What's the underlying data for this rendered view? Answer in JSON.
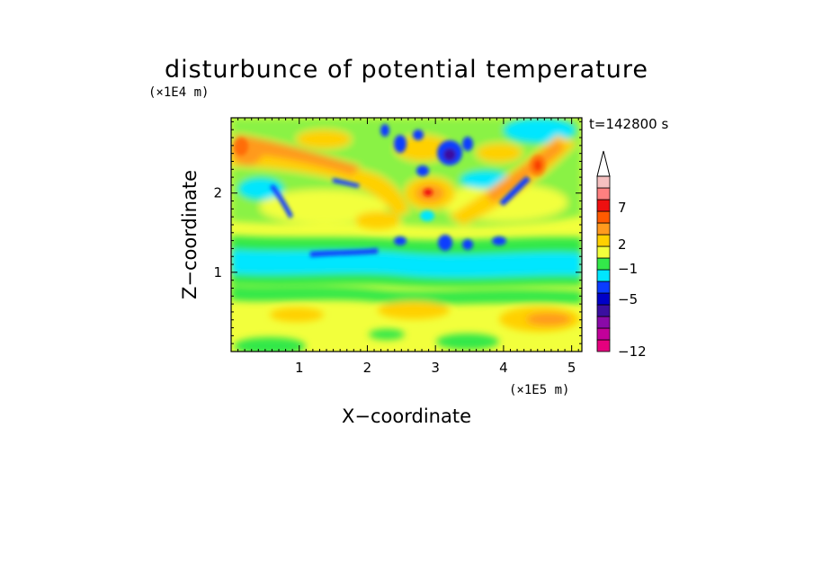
{
  "chart_data": {
    "type": "heatmap",
    "title": "disturbunce of potential temperature",
    "time_label": "t=142800 s",
    "xlabel": "X−coordinate",
    "ylabel": "Z−coordinate",
    "x_unit": "(×1E5 m)",
    "y_unit": "(×1E4 m)",
    "xlim": [
      0,
      5.15
    ],
    "ylim": [
      0,
      2.95
    ],
    "x_ticks": [
      1,
      2,
      3,
      4,
      5
    ],
    "y_ticks": [
      1,
      2
    ],
    "x_tick_labels": [
      "1",
      "2",
      "3",
      "4",
      "5"
    ],
    "y_tick_labels": [
      "1",
      "2"
    ],
    "colorbar": {
      "colors": [
        "#e6007e",
        "#c2009a",
        "#8a0aa8",
        "#3a0fa0",
        "#0000c8",
        "#0a3cff",
        "#00e6ff",
        "#33e84a",
        "#f2ff3c",
        "#ffd000",
        "#ff9a1e",
        "#ff5a00",
        "#ee1010",
        "#ff8080",
        "#f5c0c0"
      ],
      "labels": [
        "−12",
        "−5",
        "−1",
        "2",
        "7"
      ],
      "extend": "max"
    }
  }
}
